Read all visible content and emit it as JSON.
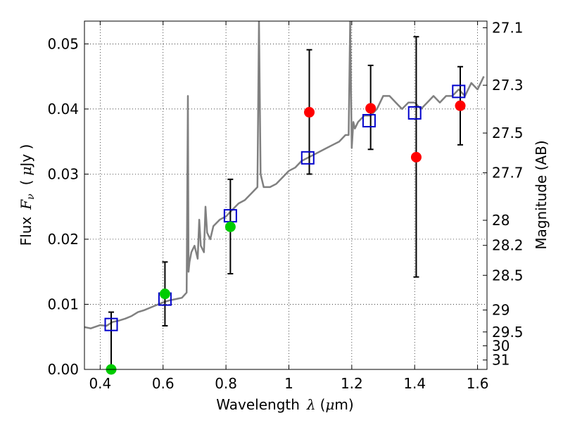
{
  "chart_data": {
    "type": "scatter",
    "xlabel": {
      "prefix": "Wavelength",
      "symbol": "λ",
      "unit_open": "(",
      "unit_mu": "μ",
      "unit_rest": "m)"
    },
    "ylabel": {
      "prefix": "Flux",
      "symbol": "F",
      "subscript": "ν",
      "unit_open": "(",
      "unit_mu": "μ",
      "unit_rest": "Jy )"
    },
    "ylabel_right": "Magnitude (AB)",
    "xlim": [
      0.35,
      1.63
    ],
    "ylim": [
      0.0,
      0.0535
    ],
    "grid": true,
    "x_ticks": [
      0.4,
      0.6,
      0.8,
      1.0,
      1.2,
      1.4,
      1.6
    ],
    "x_tick_labels": [
      "0.4",
      "0.6",
      "0.8",
      "1",
      "1.2",
      "1.4",
      "1.6"
    ],
    "y_ticks": [
      0.0,
      0.01,
      0.02,
      0.03,
      0.04,
      0.05
    ],
    "y_tick_labels": [
      "0.00",
      "0.01",
      "0.02",
      "0.03",
      "0.04",
      "0.05"
    ],
    "right_ticks": [
      {
        "mag": 27.1,
        "label": "27.1"
      },
      {
        "mag": 27.3,
        "label": "27.3"
      },
      {
        "mag": 27.5,
        "label": "27.5"
      },
      {
        "mag": 27.7,
        "label": "27.7"
      },
      {
        "mag": 28.0,
        "label": "28"
      },
      {
        "mag": 28.2,
        "label": "28.2"
      },
      {
        "mag": 28.5,
        "label": "28.5"
      },
      {
        "mag": 29.0,
        "label": "29"
      },
      {
        "mag": 29.5,
        "label": "29.5"
      },
      {
        "mag": 30.0,
        "label": "30"
      },
      {
        "mag": 31.0,
        "label": "31"
      }
    ],
    "series": [
      {
        "type": "line",
        "color": "#808080",
        "x": [
          0.35,
          0.37,
          0.4,
          0.42,
          0.44,
          0.46,
          0.48,
          0.5,
          0.52,
          0.54,
          0.56,
          0.58,
          0.6,
          0.62,
          0.64,
          0.66,
          0.675,
          0.679,
          0.681,
          0.684,
          0.69,
          0.7,
          0.71,
          0.715,
          0.72,
          0.73,
          0.735,
          0.74,
          0.75,
          0.76,
          0.78,
          0.8,
          0.82,
          0.84,
          0.86,
          0.88,
          0.9,
          0.905,
          0.91,
          0.915,
          0.92,
          0.94,
          0.96,
          0.98,
          1.0,
          1.02,
          1.04,
          1.06,
          1.08,
          1.1,
          1.12,
          1.14,
          1.16,
          1.18,
          1.19,
          1.195,
          1.2,
          1.205,
          1.21,
          1.22,
          1.24,
          1.26,
          1.28,
          1.3,
          1.32,
          1.34,
          1.36,
          1.38,
          1.4,
          1.42,
          1.44,
          1.46,
          1.48,
          1.5,
          1.52,
          1.54,
          1.56,
          1.58,
          1.6,
          1.62
        ],
        "y": [
          0.0065,
          0.0063,
          0.0068,
          0.0067,
          0.0073,
          0.0075,
          0.0078,
          0.0082,
          0.0088,
          0.0091,
          0.0095,
          0.0099,
          0.0103,
          0.0106,
          0.0108,
          0.011,
          0.0118,
          0.042,
          0.015,
          0.0165,
          0.018,
          0.019,
          0.017,
          0.023,
          0.019,
          0.018,
          0.025,
          0.021,
          0.02,
          0.022,
          0.023,
          0.0235,
          0.0245,
          0.0255,
          0.026,
          0.027,
          0.028,
          0.0535,
          0.03,
          0.029,
          0.028,
          0.028,
          0.0285,
          0.0295,
          0.0305,
          0.031,
          0.032,
          0.0325,
          0.033,
          0.0335,
          0.034,
          0.0345,
          0.035,
          0.036,
          0.036,
          0.0535,
          0.034,
          0.038,
          0.037,
          0.038,
          0.039,
          0.039,
          0.04,
          0.042,
          0.042,
          0.041,
          0.04,
          0.041,
          0.041,
          0.04,
          0.041,
          0.042,
          0.041,
          0.042,
          0.042,
          0.043,
          0.042,
          0.044,
          0.043,
          0.045
        ]
      },
      {
        "type": "model-flux",
        "marker": "open-square",
        "color": "#0000cc",
        "x": [
          0.435,
          0.606,
          0.814,
          1.06,
          1.255,
          1.4,
          1.54
        ],
        "y": [
          0.0069,
          0.0108,
          0.0236,
          0.0325,
          0.0382,
          0.0394,
          0.0427
        ]
      },
      {
        "type": "observed-flux-green",
        "marker": "filled-circle",
        "color": "#00cc00",
        "x": [
          0.435,
          0.606,
          0.814
        ],
        "y": [
          0.0,
          0.0116,
          0.0219
        ],
        "yerr_low": [
          0.0,
          0.0049,
          0.0072
        ],
        "yerr_high": [
          0.0088,
          0.0049,
          0.0073
        ]
      },
      {
        "type": "observed-flux-red",
        "marker": "filled-circle",
        "color": "#ff0000",
        "x": [
          1.065,
          1.26,
          1.405,
          1.545
        ],
        "y": [
          0.0395,
          0.0401,
          0.0326,
          0.0405
        ],
        "yerr_low": [
          0.0095,
          0.0063,
          0.0184,
          0.006
        ],
        "yerr_high": [
          0.0096,
          0.0066,
          0.0185,
          0.006
        ]
      }
    ]
  }
}
